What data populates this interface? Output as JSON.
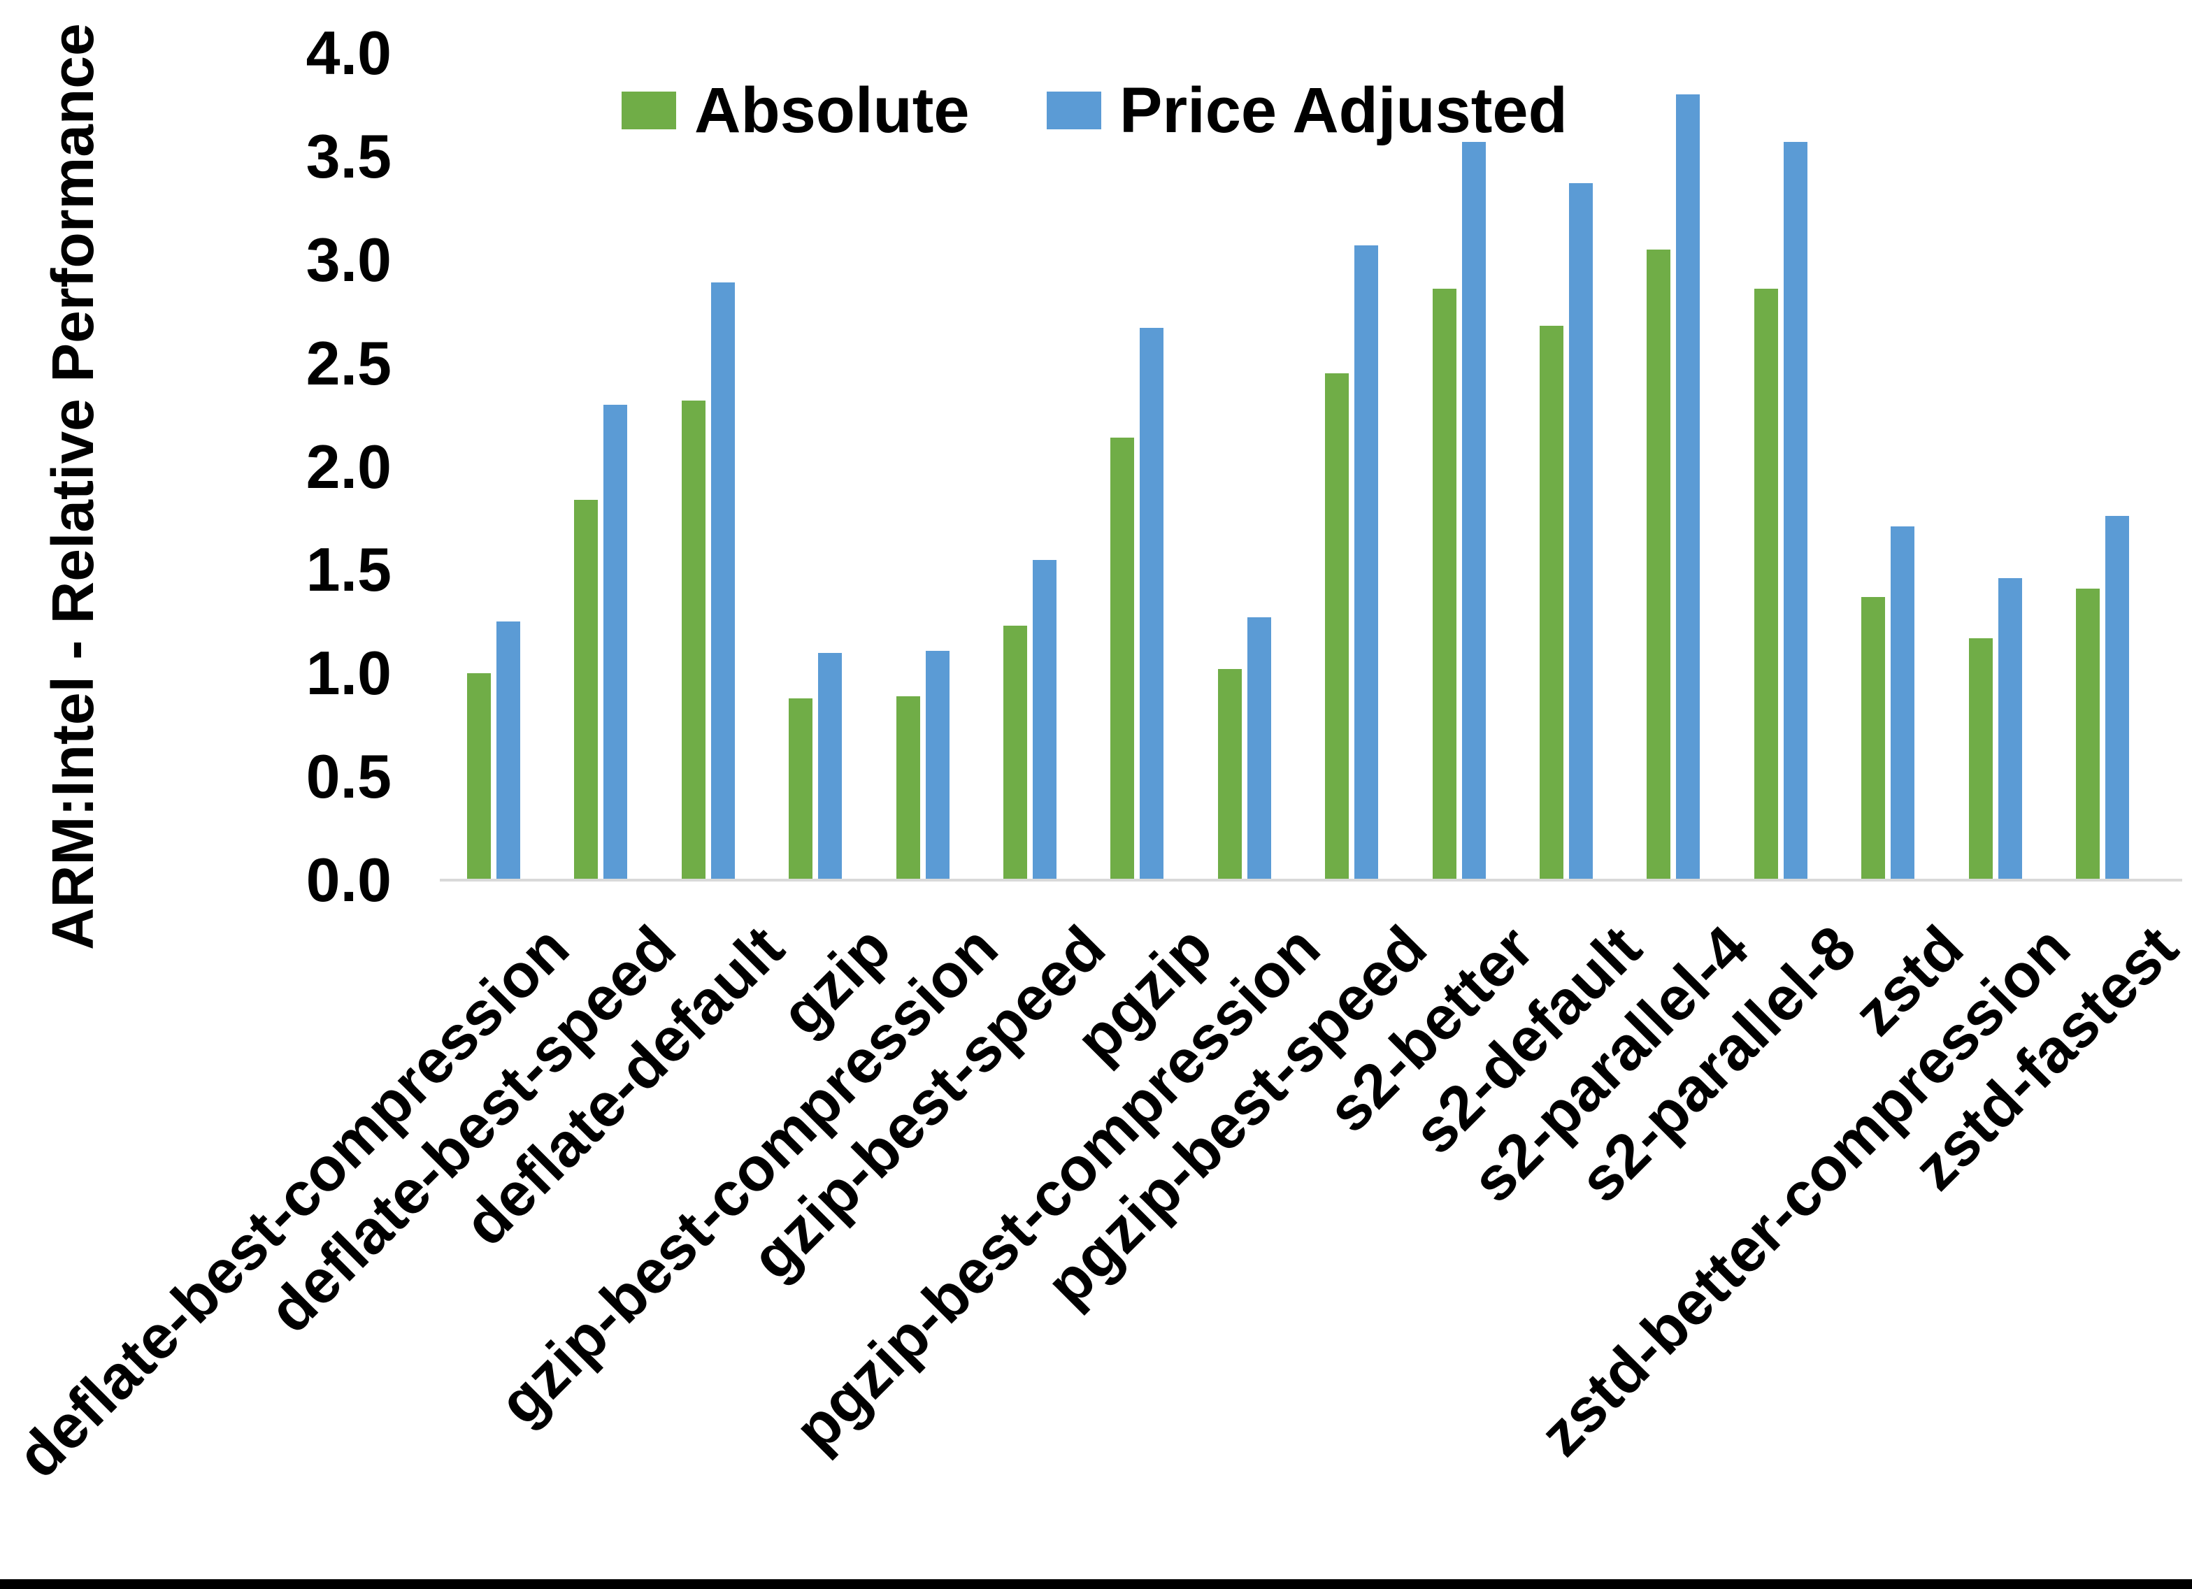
{
  "chart": {
    "y_axis_title": "ARM:Intel - Relative Performance",
    "legend": [
      {
        "label": "Absolute",
        "color": "#70ad47"
      },
      {
        "label": "Price Adjusted",
        "color": "#5b9bd5"
      }
    ],
    "axis_line_color": "#d9d9d9",
    "text_color": "#000000"
  },
  "chart_data": {
    "type": "bar",
    "title": "",
    "xlabel": "",
    "ylabel": "ARM:Intel - Relative Performance",
    "ylim": [
      0.0,
      4.0
    ],
    "ytick_step": 0.5,
    "yticks": [
      "0.0",
      "0.5",
      "1.0",
      "1.5",
      "2.0",
      "2.5",
      "3.0",
      "3.5",
      "4.0"
    ],
    "grid": false,
    "legend_position": "top-center",
    "categories": [
      "deflate-best-compression",
      "deflate-best-speed",
      "deflate-default",
      "gzip",
      "gzip-best-compression",
      "gzip-best-speed",
      "pgzip",
      "pgzip-best-compression",
      "pgzip-best-speed",
      "s2-better",
      "s2-default",
      "s2-parallel-4",
      "s2-parallel-8",
      "zstd",
      "zstd-better-compression",
      "zstd-fastest"
    ],
    "series": [
      {
        "name": "Absolute",
        "color": "#70ad47",
        "values": [
          1.0,
          1.84,
          2.32,
          0.88,
          0.89,
          1.23,
          2.14,
          1.02,
          2.45,
          2.86,
          2.68,
          3.05,
          2.86,
          1.37,
          1.17,
          1.41
        ]
      },
      {
        "name": "Price Adjusted",
        "color": "#5b9bd5",
        "values": [
          1.25,
          2.3,
          2.89,
          1.1,
          1.11,
          1.55,
          2.67,
          1.27,
          3.07,
          3.57,
          3.37,
          3.8,
          3.57,
          1.71,
          1.46,
          1.76
        ]
      }
    ]
  }
}
